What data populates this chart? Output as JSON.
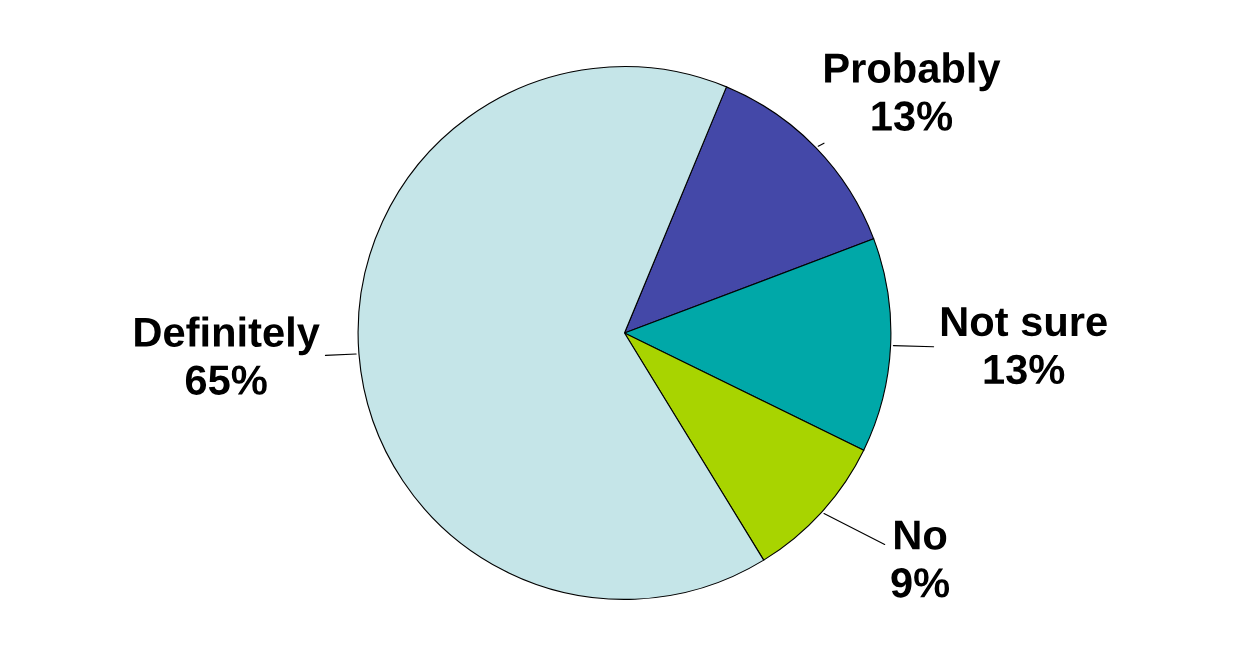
{
  "chart_data": {
    "type": "pie",
    "categories": [
      "Probably",
      "Not sure",
      "No",
      "Definitely"
    ],
    "values": [
      13,
      13,
      9,
      65
    ],
    "colors": [
      "#4448a8",
      "#00a8a8",
      "#a8d400",
      "#c5e5e8"
    ],
    "value_labels": [
      "13%",
      "13%",
      "9%",
      "65%"
    ],
    "legend": false
  }
}
